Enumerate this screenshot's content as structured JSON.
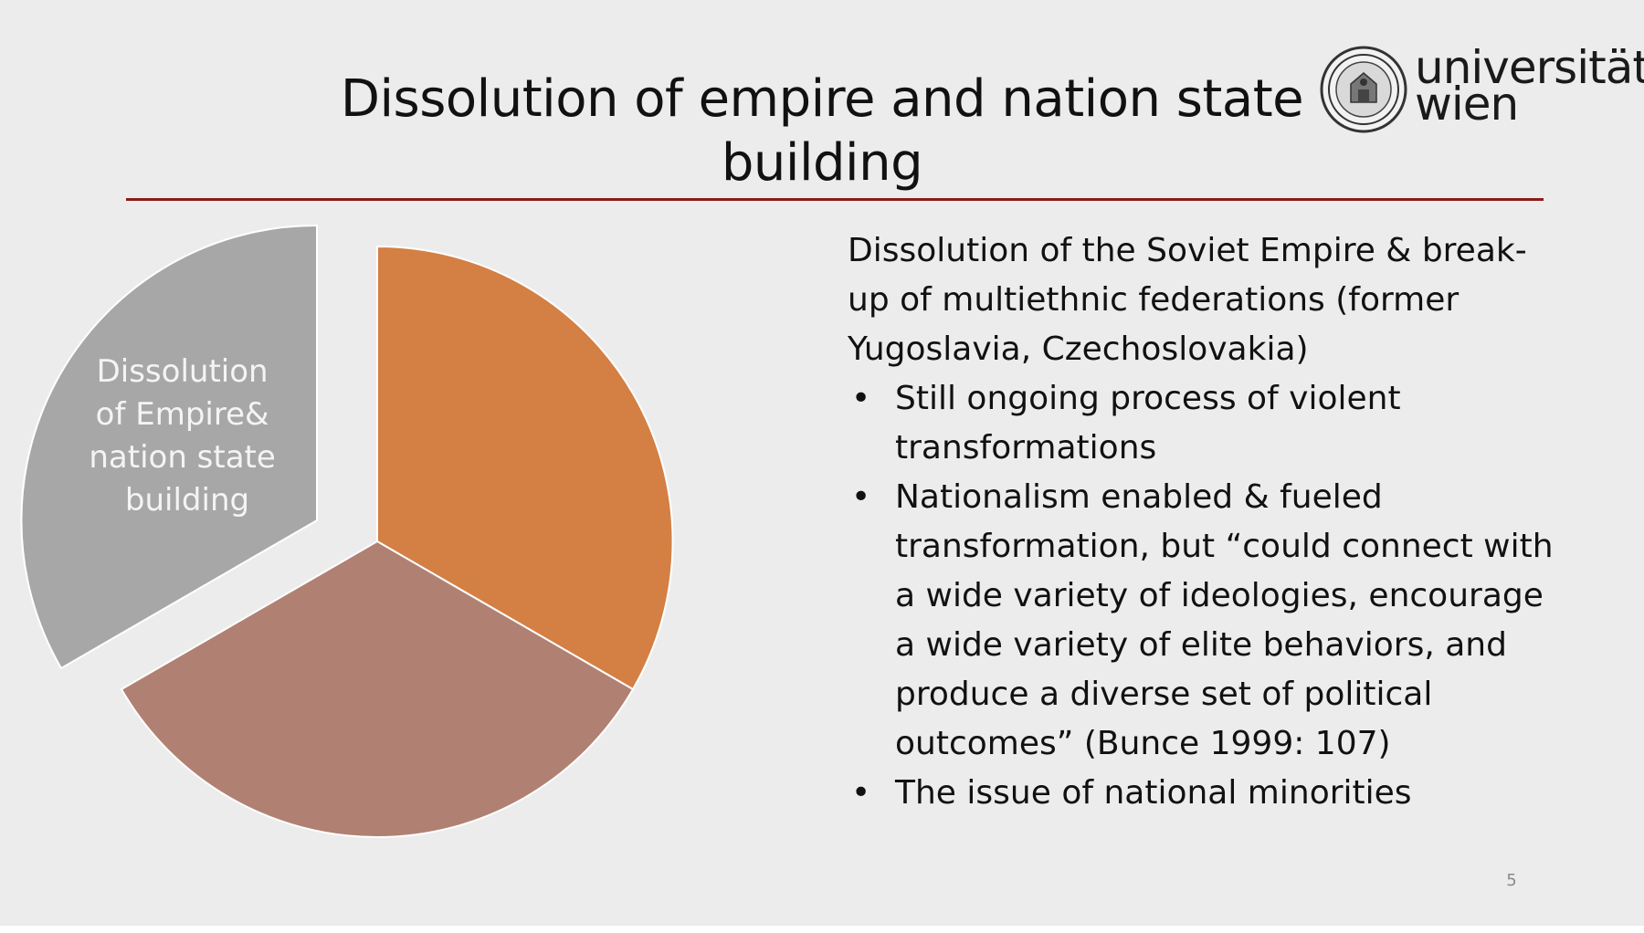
{
  "slide": {
    "title": "Dissolution of empire and nation state building",
    "logo": {
      "line1": "universität",
      "line2": "wien",
      "seal_icon": "university-seal-icon"
    },
    "pie": {
      "exploded_label": [
        "Dissolution",
        "of Empire&",
        "nation state",
        "building"
      ],
      "colors": {
        "orange": "#d47f44",
        "brown": "#b08172",
        "gray": "#a7a7a7"
      }
    },
    "content": {
      "intro": "Dissolution of the Soviet Empire & break-up of multiethnic federations (former Yugoslavia, Czechoslovakia)",
      "bullets": [
        "Still ongoing process of violent transformations",
        "Nationalism enabled & fueled transformation, but “could connect with a wide variety of ideologies, encourage a wide variety of elite behaviors, and produce a diverse set of political outcomes” (Bunce 1999: 107)",
        "The issue of national minorities"
      ]
    },
    "page_number": "5",
    "colors": {
      "background": "#ececec",
      "title_rule": "#8b1a1a"
    }
  }
}
